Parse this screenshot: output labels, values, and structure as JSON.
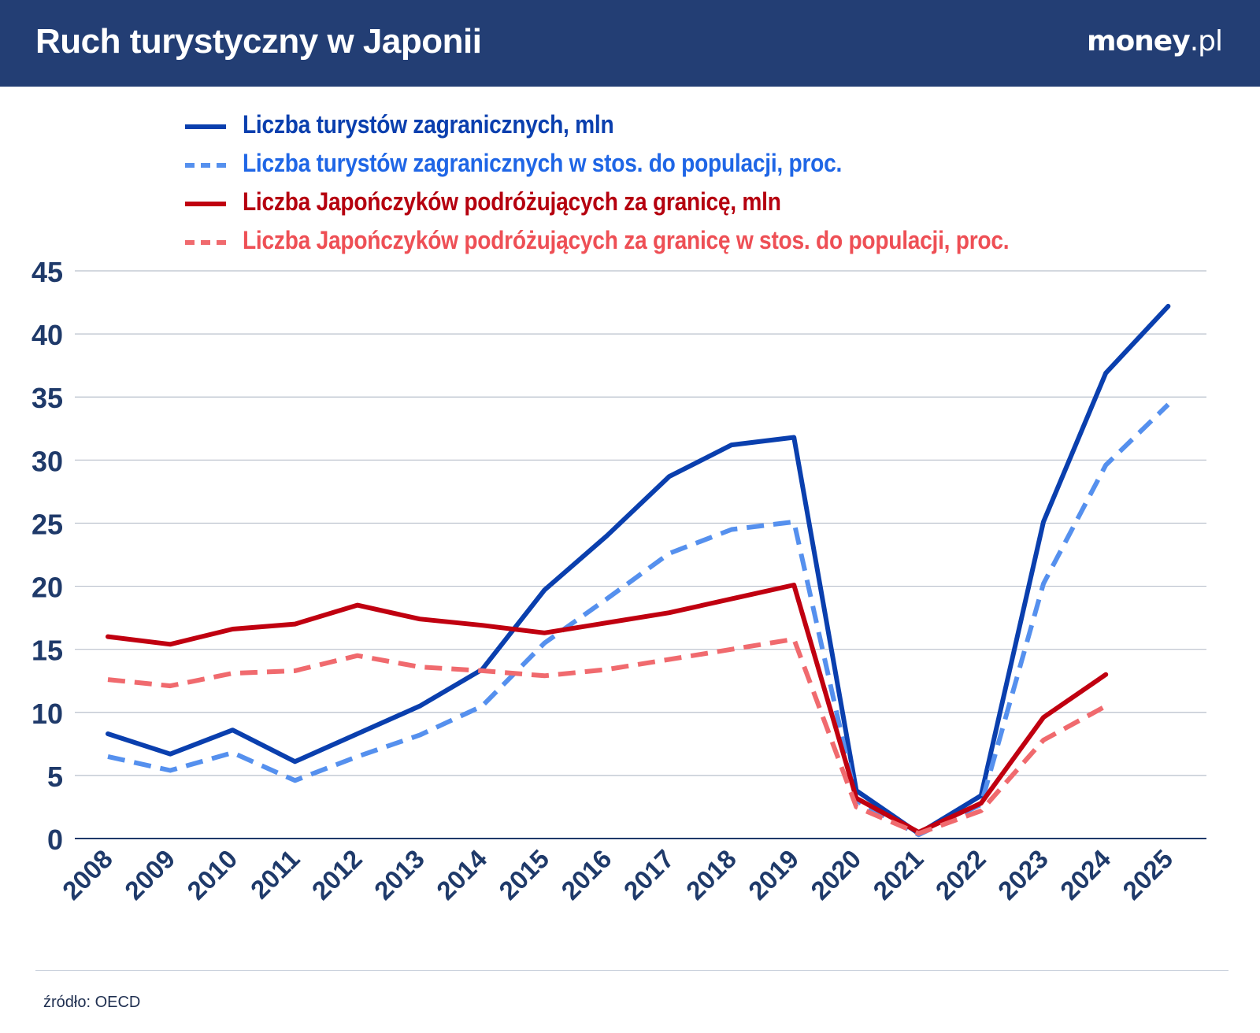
{
  "header": {
    "title": "Ruch turystyczny w Japonii",
    "brand": "money",
    "brand_suffix": ".pl"
  },
  "source": "źródło: OECD",
  "colors": {
    "header_bg": "#233e74",
    "series1": "#0a3fae",
    "series2": "#5590ee",
    "series3": "#c00010",
    "series4": "#f06a6e"
  },
  "chart_data": {
    "type": "line",
    "x": [
      "2008",
      "2009",
      "2010",
      "2011",
      "2012",
      "2013",
      "2014",
      "2015",
      "2016",
      "2017",
      "2018",
      "2019",
      "2020",
      "2021",
      "2022",
      "2023",
      "2024",
      "2025"
    ],
    "yticks": [
      "0",
      "5",
      "10",
      "15",
      "20",
      "25",
      "30",
      "35",
      "40",
      "45"
    ],
    "ylim": [
      0,
      45
    ],
    "grid": true,
    "legend": "top",
    "series": [
      {
        "name": "Liczba turystów zagranicznych, mln",
        "color": "#0a3fae",
        "dash": false,
        "values": [
          8.3,
          6.7,
          8.6,
          6.1,
          8.3,
          10.5,
          13.4,
          19.7,
          24.0,
          28.7,
          31.2,
          31.8,
          3.8,
          0.4,
          3.4,
          25.1,
          36.9,
          42.2
        ]
      },
      {
        "name": "Liczba turystów zagranicznych w stos. do populacji, proc.",
        "color": "#5590ee",
        "dash": true,
        "values": [
          6.5,
          5.4,
          6.8,
          4.6,
          6.5,
          8.2,
          10.5,
          15.5,
          19.0,
          22.6,
          24.5,
          25.1,
          3.0,
          0.3,
          2.7,
          20.2,
          29.6,
          34.4
        ]
      },
      {
        "name": "Liczba Japończyków podróżujących za granicę, mln",
        "color": "#c00010",
        "dash": false,
        "values": [
          16.0,
          15.4,
          16.6,
          17.0,
          18.5,
          17.4,
          16.9,
          16.3,
          17.1,
          17.9,
          19.0,
          20.1,
          3.2,
          0.5,
          2.8,
          9.6,
          13.0,
          null
        ]
      },
      {
        "name": "Liczba Japończyków podróżujących za granicę w stos. do populacji, proc.",
        "color": "#f06a6e",
        "dash": true,
        "values": [
          12.6,
          12.1,
          13.1,
          13.3,
          14.5,
          13.6,
          13.3,
          12.9,
          13.4,
          14.2,
          15.0,
          15.8,
          2.5,
          0.4,
          2.2,
          7.8,
          10.5,
          null
        ]
      }
    ]
  }
}
